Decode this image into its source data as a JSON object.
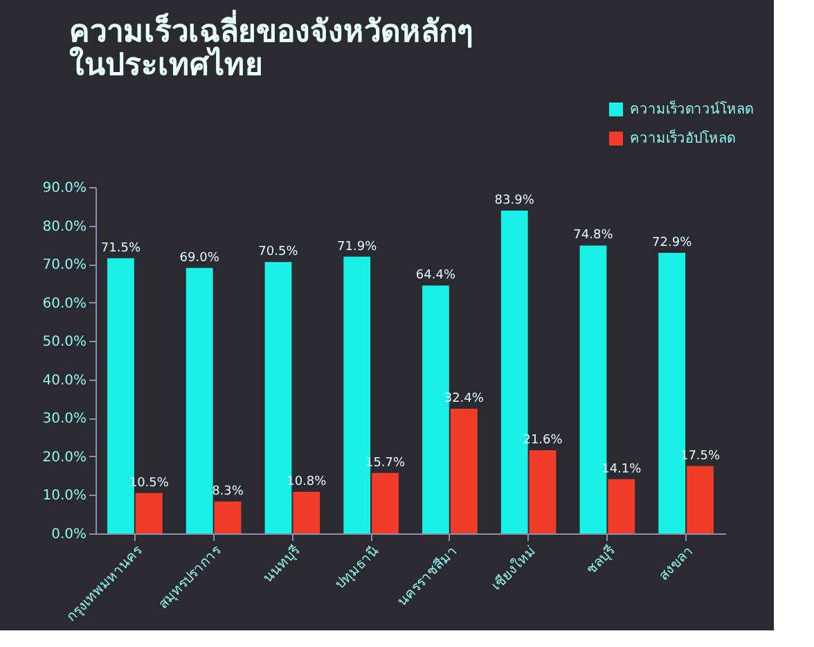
{
  "chart_data": {
    "type": "bar",
    "title": [
      "ความเร็วเฉลี่ยของจังหวัดหลักๆ",
      "ในประเทศไทย"
    ],
    "categories": [
      "กรุงเทพมหานคร",
      "สมุทรปราการ",
      "นนทบุรี",
      "ปทุมธานี",
      "นครราชสีมา",
      "เชียงใหม่",
      "ชลบุรี",
      "สงขลา"
    ],
    "series": [
      {
        "name": "ความเร็วดาวน์โหลด",
        "color": "#19f0e6",
        "values": [
          71.5,
          69.0,
          70.5,
          71.9,
          64.4,
          83.9,
          74.8,
          72.9
        ],
        "value_labels": [
          "71.5%",
          "69.0%",
          "70.5%",
          "71.9%",
          "64.4%",
          "83.9%",
          "74.8%",
          "72.9%"
        ]
      },
      {
        "name": "ความเร็วอัปโหลด",
        "color": "#f03c28",
        "values": [
          10.5,
          8.3,
          10.8,
          15.7,
          32.4,
          21.6,
          14.1,
          17.5
        ],
        "value_labels": [
          "10.5%",
          "8.3%",
          "10.8%",
          "15.7%",
          "32.4%",
          "21.6%",
          "14.1%",
          "17.5%"
        ]
      }
    ],
    "ylim": [
      0,
      90
    ],
    "yticks": [
      {
        "value": 0,
        "label": "0.0%"
      },
      {
        "value": 10,
        "label": "10.0%"
      },
      {
        "value": 20,
        "label": "20.0%"
      },
      {
        "value": 30,
        "label": "30.0%"
      },
      {
        "value": 40,
        "label": "40.0%"
      },
      {
        "value": 50,
        "label": "50.0%"
      },
      {
        "value": 60,
        "label": "60.0%"
      },
      {
        "value": 70,
        "label": "70.0%"
      },
      {
        "value": 80,
        "label": "80.0%"
      },
      {
        "value": 90,
        "label": "90.0%"
      }
    ],
    "grid": false,
    "legend": "top right"
  }
}
